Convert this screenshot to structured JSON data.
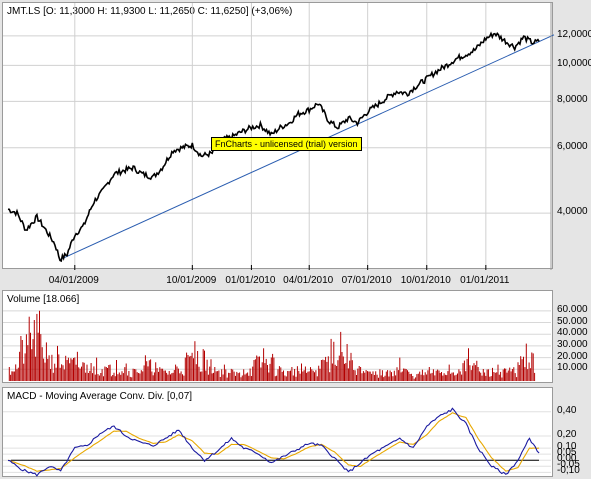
{
  "colors": {
    "price": "#000000",
    "trend": "#2a5db0",
    "volume": "#b30000",
    "macd": "#1a1aa0",
    "signal": "#e8a800",
    "zero": "#000000",
    "trial_bg": "#ffff00"
  },
  "panels": {
    "price": {
      "title": "JMT.LS [O: 11,3000  H: 11,9300  L: 11,2650  C: 11,6250] (+3,06%)"
    },
    "volume": {
      "title": "Volume [18.066]"
    },
    "macd": {
      "title": "MACD - Moving Average Conv. Div. [0,07]"
    }
  },
  "watermark": "FnCharts - unlicensed (trial) version",
  "chart_data": [
    {
      "type": "line",
      "title": "JMT.LS [O: 11,3000  H: 11,9300  L: 11,2650  C: 11,6250] (+3,06%)",
      "scale": "log",
      "ylim": [
        2.9,
        13.0
      ],
      "y_ticks": [
        "4,0000",
        "6,0000",
        "8,0000",
        "10,0000",
        "12,0000"
      ],
      "y_tick_values": [
        4,
        6,
        8,
        10,
        12
      ],
      "x_ticks": [
        "04/01/2009",
        "10/01/2009",
        "01/01/2010",
        "04/01/2010",
        "07/01/2010",
        "10/01/2010",
        "01/01/2011"
      ],
      "x_tick_dates": [
        "2009-04-01",
        "2009-10-01",
        "2010-01-01",
        "2010-04-01",
        "2010-07-01",
        "2010-10-01",
        "2011-01-01"
      ],
      "x_range": [
        "2008-12-18",
        "2011-03-31"
      ],
      "grid": true,
      "series": [
        {
          "x": [
            "2008-12-18",
            "2009-01-01",
            "2009-01-15",
            "2009-02-01",
            "2009-02-15",
            "2009-03-01",
            "2009-03-09",
            "2009-03-20",
            "2009-04-01",
            "2009-04-15",
            "2009-05-01",
            "2009-05-15",
            "2009-06-01",
            "2009-06-15",
            "2009-07-01",
            "2009-07-15",
            "2009-08-01",
            "2009-08-15",
            "2009-09-01",
            "2009-09-15",
            "2009-10-01",
            "2009-10-15",
            "2009-11-01",
            "2009-11-15",
            "2009-12-01",
            "2009-12-15",
            "2010-01-01",
            "2010-01-15",
            "2010-02-01",
            "2010-02-15",
            "2010-03-01",
            "2010-03-15",
            "2010-04-01",
            "2010-04-15",
            "2010-05-01",
            "2010-05-15",
            "2010-06-01",
            "2010-06-15",
            "2010-07-01",
            "2010-07-15",
            "2010-08-01",
            "2010-08-15",
            "2010-09-01",
            "2010-09-15",
            "2010-10-01",
            "2010-10-15",
            "2010-11-01",
            "2010-11-15",
            "2010-12-01",
            "2010-12-15",
            "2011-01-01",
            "2011-01-15",
            "2011-02-01",
            "2011-02-15",
            "2011-03-01",
            "2011-03-15",
            "2011-03-25"
          ],
          "values": [
            4.1,
            4.0,
            3.6,
            3.9,
            3.6,
            3.3,
            3.0,
            3.1,
            3.5,
            3.7,
            4.3,
            4.6,
            5.1,
            5.2,
            5.3,
            5.1,
            5.0,
            5.3,
            5.9,
            6.0,
            6.1,
            5.7,
            5.8,
            6.3,
            6.4,
            6.6,
            6.8,
            6.9,
            6.5,
            6.8,
            7.0,
            7.4,
            7.6,
            7.9,
            7.1,
            6.8,
            7.2,
            7.0,
            7.5,
            7.8,
            8.2,
            8.5,
            8.4,
            8.8,
            9.2,
            9.6,
            10.0,
            10.4,
            10.7,
            11.0,
            11.8,
            12.2,
            11.6,
            11.2,
            11.9,
            11.5,
            11.6
          ]
        },
        {
          "name": "trendline",
          "x": [
            "2009-03-09",
            "2011-03-31"
          ],
          "values": [
            3.0,
            11.5
          ]
        }
      ]
    },
    {
      "type": "bar",
      "title": "Volume [18.066]",
      "ylim": [
        0,
        65000
      ],
      "y_ticks": [
        "10.000",
        "20.000",
        "30.000",
        "40.000",
        "50.000",
        "60.000"
      ],
      "y_tick_values": [
        10000,
        20000,
        30000,
        40000,
        50000,
        60000
      ],
      "series": [
        {
          "x": [
            "2008-12-20",
            "2009-01-05",
            "2009-01-20",
            "2009-02-05",
            "2009-02-20",
            "2009-03-05",
            "2009-03-20",
            "2009-04-05",
            "2009-04-20",
            "2009-05-05",
            "2009-05-20",
            "2009-06-05",
            "2009-06-20",
            "2009-07-05",
            "2009-07-20",
            "2009-08-05",
            "2009-08-20",
            "2009-09-05",
            "2009-09-20",
            "2009-10-05",
            "2009-10-20",
            "2009-11-05",
            "2009-11-20",
            "2009-12-05",
            "2009-12-20",
            "2010-01-05",
            "2010-01-20",
            "2010-02-05",
            "2010-02-20",
            "2010-03-05",
            "2010-03-20",
            "2010-04-05",
            "2010-04-20",
            "2010-05-05",
            "2010-05-20",
            "2010-06-05",
            "2010-06-20",
            "2010-07-05",
            "2010-07-20",
            "2010-08-05",
            "2010-08-20",
            "2010-09-05",
            "2010-09-20",
            "2010-10-05",
            "2010-10-20",
            "2010-11-05",
            "2010-11-20",
            "2010-12-05",
            "2010-12-20",
            "2011-01-05",
            "2011-01-20",
            "2011-02-05",
            "2011-02-20",
            "2011-03-05",
            "2011-03-20"
          ],
          "values": [
            12000,
            25000,
            55000,
            60000,
            22000,
            30000,
            18000,
            25000,
            14000,
            20000,
            12000,
            18000,
            15000,
            10000,
            22000,
            16000,
            9000,
            14000,
            20000,
            34000,
            26000,
            12000,
            14000,
            8000,
            10000,
            18000,
            28000,
            20000,
            9000,
            12000,
            15000,
            10000,
            18000,
            36000,
            42000,
            24000,
            12000,
            8000,
            10000,
            9000,
            20000,
            6000,
            8000,
            12000,
            9000,
            14000,
            10000,
            28000,
            12000,
            10000,
            14000,
            9000,
            16000,
            32000,
            18000
          ]
        }
      ]
    },
    {
      "type": "line",
      "title": "MACD - Moving Average Conv. Div. [0,07]",
      "ylim": [
        -0.13,
        0.48
      ],
      "y_ticks": [
        "-0,10",
        "-0,05",
        "0,00",
        "0,05",
        "0,10",
        "0,20",
        "0,40"
      ],
      "y_tick_values": [
        -0.1,
        -0.05,
        0.0,
        0.05,
        0.1,
        0.2,
        0.4
      ],
      "series": [
        {
          "x": [
            "2008-12-18",
            "2009-01-10",
            "2009-02-01",
            "2009-02-20",
            "2009-03-10",
            "2009-04-01",
            "2009-04-20",
            "2009-05-10",
            "2009-06-01",
            "2009-06-20",
            "2009-07-10",
            "2009-08-01",
            "2009-08-20",
            "2009-09-10",
            "2009-10-01",
            "2009-10-20",
            "2009-11-10",
            "2009-12-01",
            "2009-12-20",
            "2010-01-10",
            "2010-02-01",
            "2010-02-20",
            "2010-03-10",
            "2010-04-01",
            "2010-04-20",
            "2010-05-10",
            "2010-06-01",
            "2010-06-20",
            "2010-07-10",
            "2010-08-01",
            "2010-08-20",
            "2010-09-10",
            "2010-10-01",
            "2010-10-20",
            "2010-11-10",
            "2010-12-01",
            "2010-12-20",
            "2011-01-10",
            "2011-02-01",
            "2011-02-20",
            "2011-03-10",
            "2011-03-25"
          ],
          "values": [
            0.0,
            -0.08,
            -0.12,
            -0.05,
            -0.09,
            0.1,
            0.12,
            0.22,
            0.28,
            0.2,
            0.15,
            0.12,
            0.18,
            0.25,
            0.1,
            0.0,
            0.08,
            0.18,
            0.1,
            0.06,
            -0.02,
            0.03,
            0.08,
            0.14,
            0.12,
            0.02,
            -0.1,
            -0.02,
            0.06,
            0.12,
            0.18,
            0.1,
            0.28,
            0.36,
            0.42,
            0.3,
            0.1,
            -0.05,
            -0.12,
            0.0,
            0.18,
            0.06
          ]
        },
        {
          "x": [
            "2008-12-18",
            "2009-01-10",
            "2009-02-01",
            "2009-02-20",
            "2009-03-10",
            "2009-04-01",
            "2009-04-20",
            "2009-05-10",
            "2009-06-01",
            "2009-06-20",
            "2009-07-10",
            "2009-08-01",
            "2009-08-20",
            "2009-09-10",
            "2009-10-01",
            "2009-10-20",
            "2009-11-10",
            "2009-12-01",
            "2009-12-20",
            "2010-01-10",
            "2010-02-01",
            "2010-02-20",
            "2010-03-10",
            "2010-04-01",
            "2010-04-20",
            "2010-05-10",
            "2010-06-01",
            "2010-06-20",
            "2010-07-10",
            "2010-08-01",
            "2010-08-20",
            "2010-09-10",
            "2010-10-01",
            "2010-10-20",
            "2010-11-10",
            "2010-12-01",
            "2010-12-20",
            "2011-01-10",
            "2011-02-01",
            "2011-02-20",
            "2011-03-10",
            "2011-03-25"
          ],
          "values": [
            0.0,
            -0.04,
            -0.09,
            -0.08,
            -0.07,
            0.02,
            0.09,
            0.16,
            0.24,
            0.24,
            0.18,
            0.14,
            0.15,
            0.21,
            0.16,
            0.06,
            0.05,
            0.13,
            0.13,
            0.08,
            0.02,
            0.01,
            0.05,
            0.11,
            0.13,
            0.07,
            -0.04,
            -0.05,
            0.02,
            0.09,
            0.15,
            0.13,
            0.21,
            0.32,
            0.39,
            0.35,
            0.18,
            0.02,
            -0.09,
            -0.06,
            0.1,
            0.1
          ]
        }
      ]
    }
  ]
}
